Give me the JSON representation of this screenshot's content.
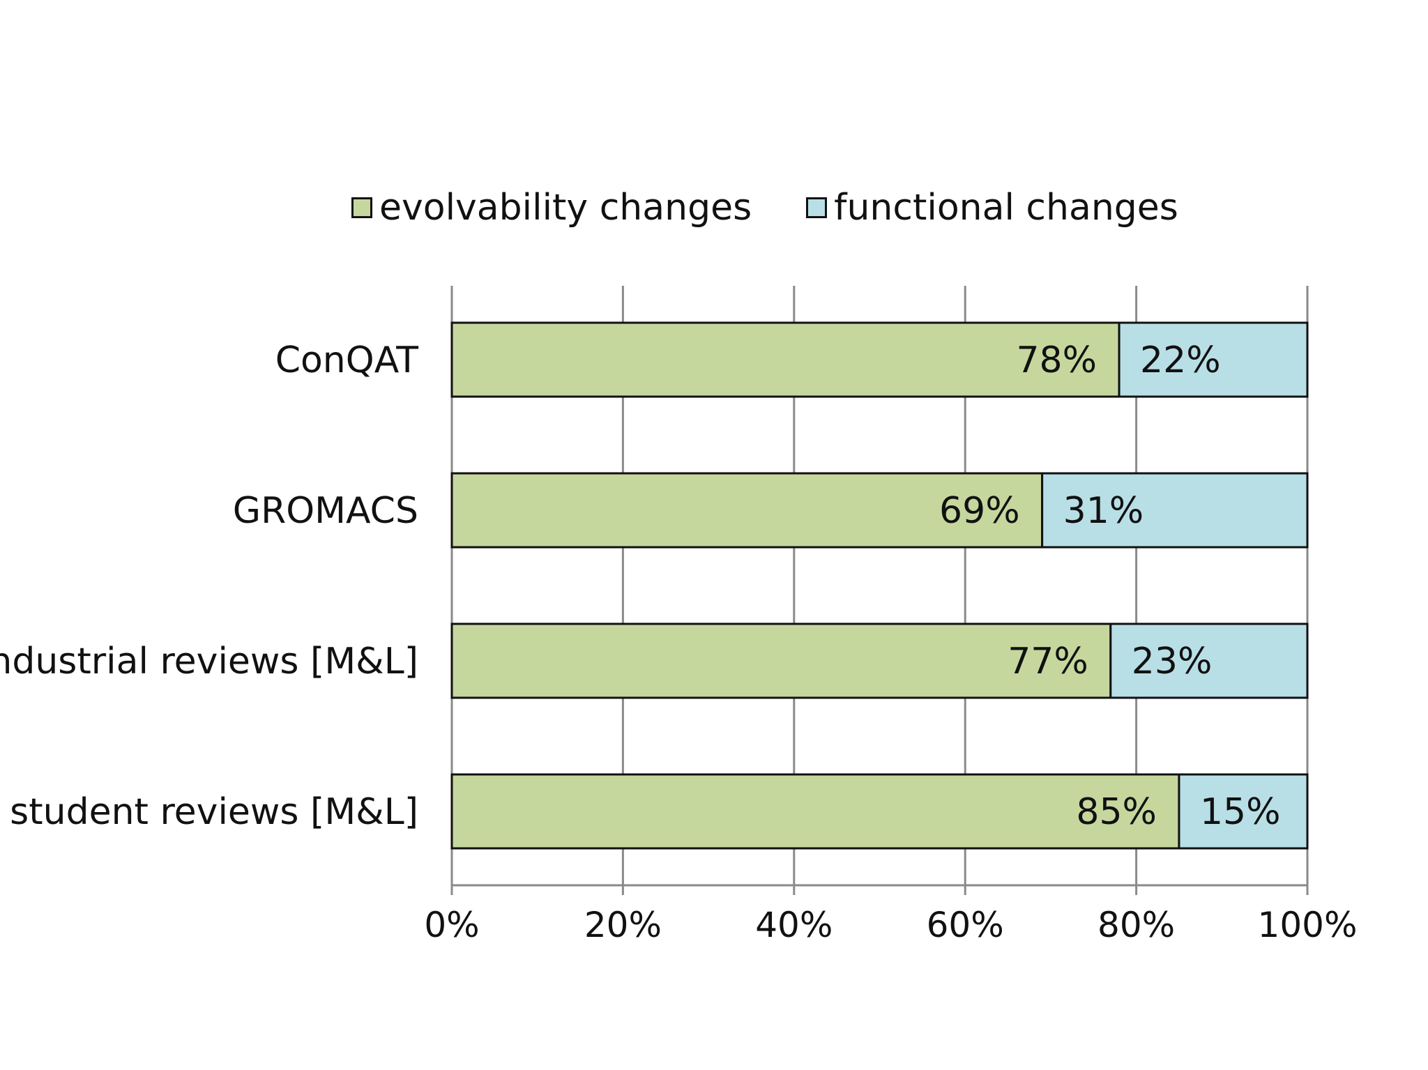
{
  "chart_data": {
    "type": "bar",
    "orientation": "horizontal",
    "stacked": true,
    "categories": [
      "ConQAT",
      "GROMACS",
      "industrial reviews [M&L]",
      "student reviews [M&L]"
    ],
    "series": [
      {
        "name": "evolvability changes",
        "values": [
          78,
          69,
          77,
          85
        ],
        "color": "#c6d79e"
      },
      {
        "name": "functional changes",
        "values": [
          22,
          31,
          23,
          15
        ],
        "color": "#b8dfe6"
      }
    ],
    "data_labels": [
      [
        "78%",
        "69%",
        "77%",
        "85%"
      ],
      [
        "22%",
        "31%",
        "23%",
        "15%"
      ]
    ],
    "xticks": [
      "0%",
      "20%",
      "40%",
      "60%",
      "80%",
      "100%"
    ],
    "xlim": [
      0,
      100
    ],
    "grid": true,
    "legend_position": "top",
    "title": "",
    "xlabel": "",
    "ylabel": ""
  }
}
